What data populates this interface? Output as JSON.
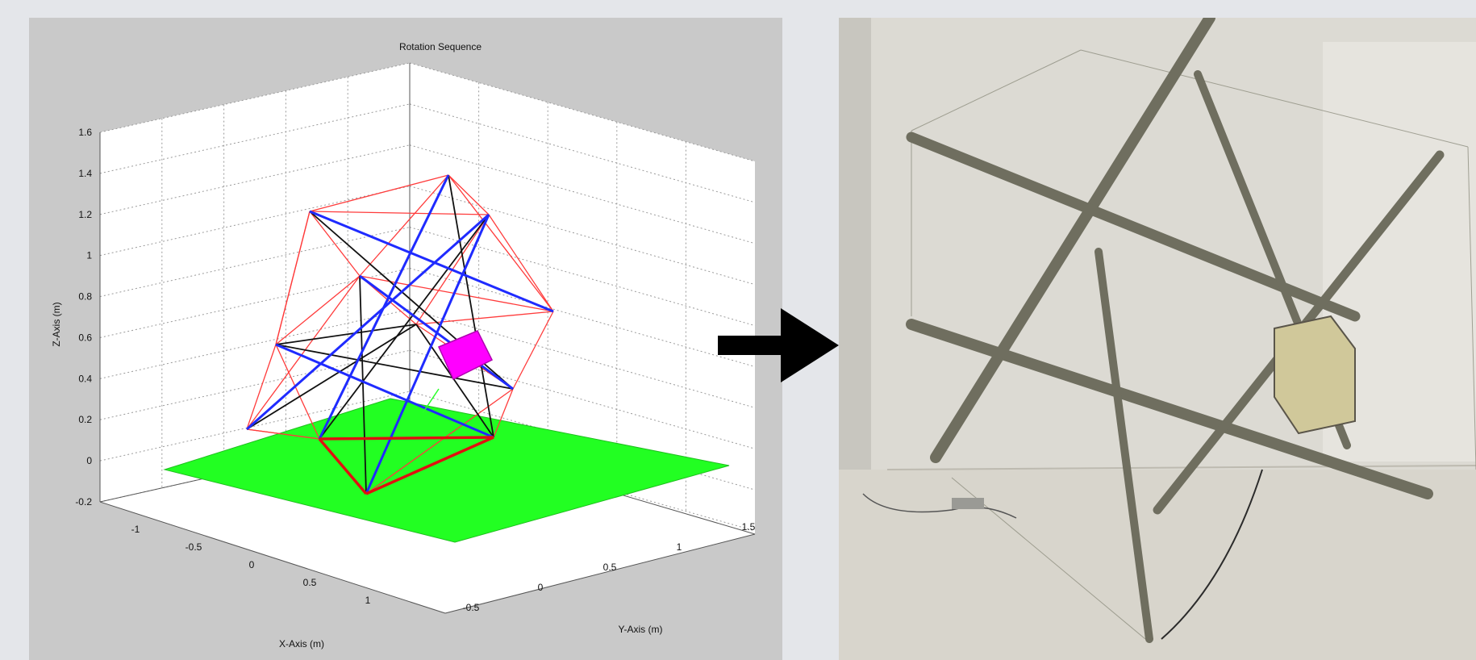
{
  "chart_data": {
    "type": "3d-line",
    "title": "Rotation Sequence",
    "xlabel": "X-Axis (m)",
    "ylabel": "Y-Axis (m)",
    "zlabel": "Z-Axis (m)",
    "xlim": [
      -1,
      1
    ],
    "ylim": [
      -0.5,
      1.5
    ],
    "zlim": [
      -0.2,
      1.6
    ],
    "x_ticks": [
      "-1",
      "-0.5",
      "0",
      "0.5",
      "1"
    ],
    "y_ticks": [
      "-0.5",
      "0",
      "0.5",
      "1",
      "1.5"
    ],
    "z_ticks": [
      "-0.2",
      "0",
      "0.2",
      "0.4",
      "0.6",
      "0.8",
      "1",
      "1.2",
      "1.4",
      "1.6"
    ],
    "grid": true,
    "colors": {
      "struts": "#1f2bff",
      "tendons": "#ff3b3b",
      "inner_cables": "#111111",
      "ground_contact": "#e01010",
      "payload": "#ff00ff",
      "ground_plane": "#22ff22"
    }
  },
  "photo": {
    "description_icon": "tensegrity-robot-photo"
  },
  "arrow": {
    "icon": "right-arrow-icon",
    "color": "#000000"
  }
}
